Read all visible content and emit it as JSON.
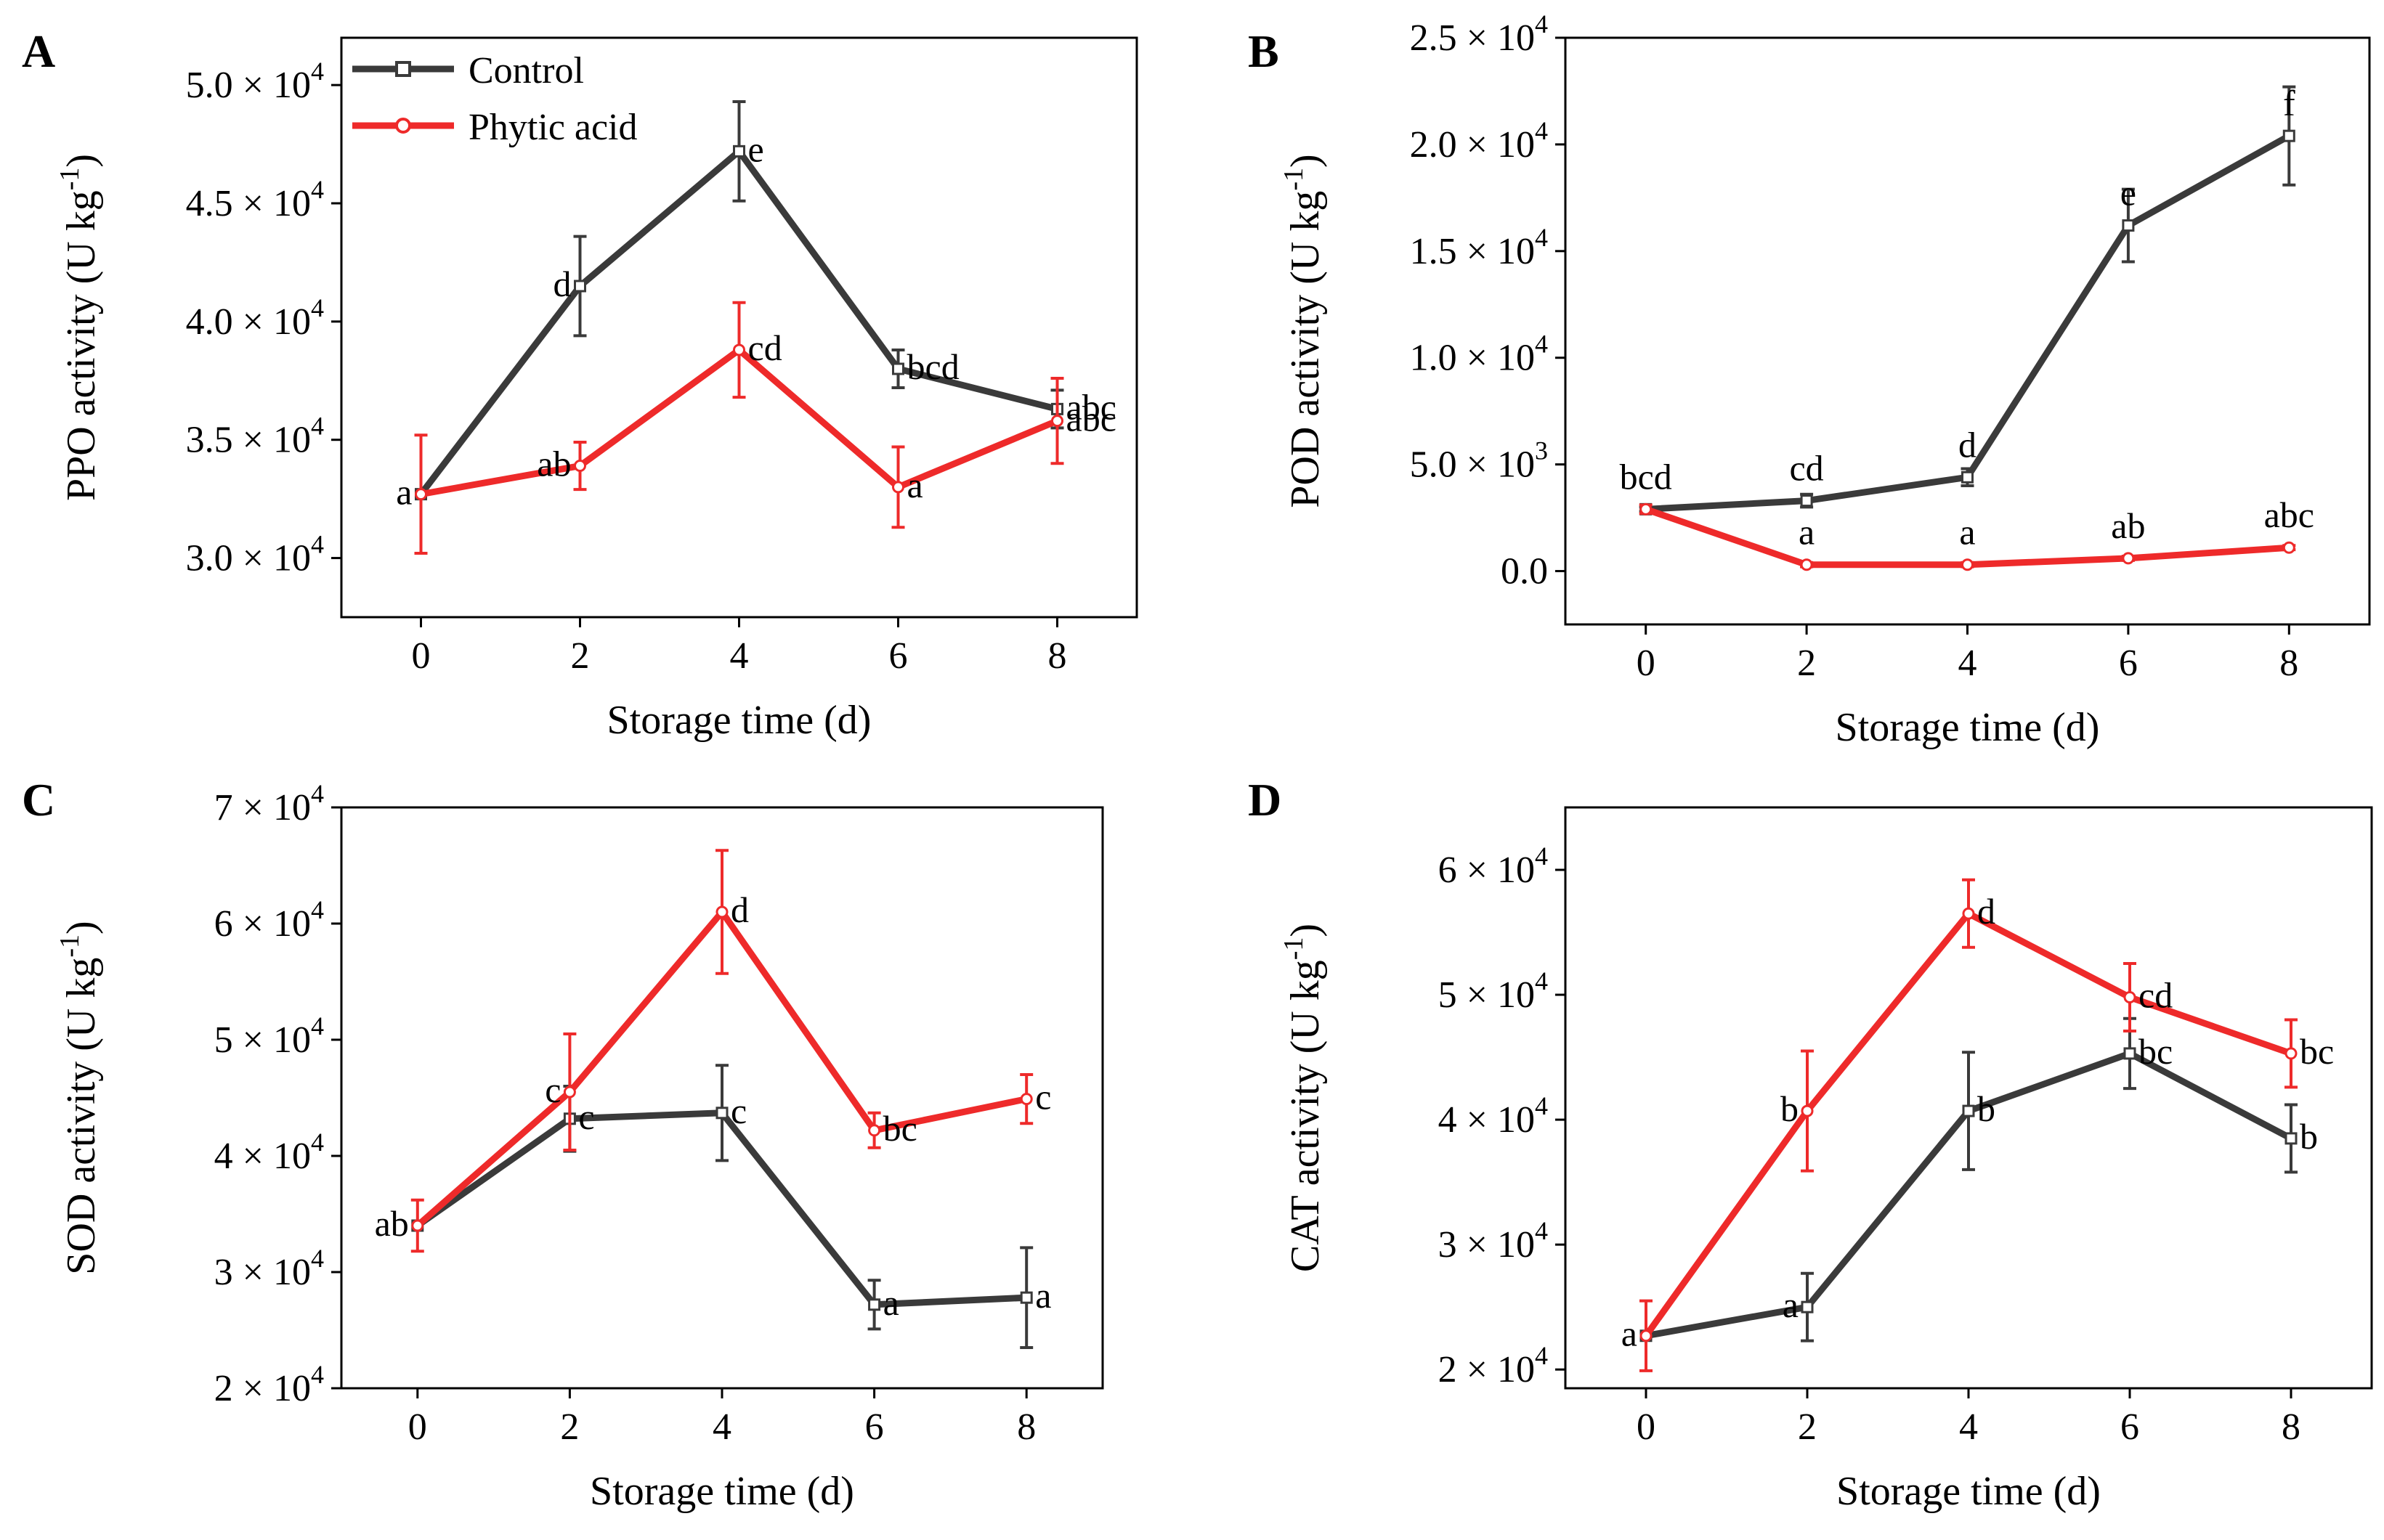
{
  "figure": {
    "xlabel": "Storage time (d)",
    "legend": {
      "control": "Control",
      "phytic": "Phytic acid"
    }
  },
  "colors": {
    "control": "#3a3a3a",
    "phytic": "#ee2a2a",
    "axis": "#000000"
  },
  "chart_data": [
    {
      "type": "line",
      "panel": "A",
      "ylabel": "PPO activity (U kg-1)",
      "xlabel": "Storage time (d)",
      "xlim": [
        -1,
        9
      ],
      "ylim": [
        27500,
        52000
      ],
      "x": [
        0,
        2,
        4,
        6,
        8
      ],
      "xticks": [
        0,
        2,
        4,
        6,
        8
      ],
      "yticks": [
        {
          "mant": "3.0",
          "exp": "4"
        },
        {
          "mant": "3.5",
          "exp": "4"
        },
        {
          "mant": "4.0",
          "exp": "4"
        },
        {
          "mant": "4.5",
          "exp": "4"
        },
        {
          "mant": "5.0",
          "exp": "4"
        }
      ],
      "ytick_values": [
        30000,
        35000,
        40000,
        45000,
        50000
      ],
      "legend_position": "top-left",
      "series": [
        {
          "name": "Control",
          "values": [
            32700,
            41500,
            47200,
            38000,
            36300
          ],
          "errors": [
            0,
            2100,
            2100,
            800,
            800
          ],
          "letters": [
            "",
            "d",
            "e",
            "bcd",
            "abc"
          ]
        },
        {
          "name": "Phytic acid",
          "values": [
            32700,
            33900,
            38800,
            33000,
            35800
          ],
          "errors": [
            2500,
            1000,
            2000,
            1700,
            1800
          ],
          "letters": [
            "a",
            "ab",
            "cd",
            "a",
            "abc"
          ]
        }
      ]
    },
    {
      "type": "line",
      "panel": "B",
      "ylabel": "POD activity (U kg-1)",
      "xlabel": "Storage time (d)",
      "xlim": [
        -1,
        9
      ],
      "ylim": [
        -2500,
        25000
      ],
      "x": [
        0,
        2,
        4,
        6,
        8
      ],
      "xticks": [
        0,
        2,
        4,
        6,
        8
      ],
      "yticks": [
        {
          "mant": "0.0",
          "exp": ""
        },
        {
          "mant": "5.0",
          "exp": "3"
        },
        {
          "mant": "1.0",
          "exp": "4"
        },
        {
          "mant": "1.5",
          "exp": "4"
        },
        {
          "mant": "2.0",
          "exp": "4"
        },
        {
          "mant": "2.5",
          "exp": "4"
        }
      ],
      "ytick_values": [
        0,
        5000,
        10000,
        15000,
        20000,
        25000
      ],
      "series": [
        {
          "name": "Control",
          "values": [
            2900,
            3300,
            4400,
            16200,
            20400
          ],
          "errors": [
            100,
            300,
            400,
            1700,
            2300
          ],
          "letters": [
            "bcd",
            "cd",
            "d",
            "e",
            "f"
          ]
        },
        {
          "name": "Phytic acid",
          "values": [
            2900,
            300,
            300,
            600,
            1100
          ],
          "errors": [
            200,
            100,
            100,
            100,
            100
          ],
          "letters": [
            "",
            "a",
            "a",
            "ab",
            "abc"
          ]
        }
      ]
    },
    {
      "type": "line",
      "panel": "C",
      "ylabel": "SOD activity (U kg-1)",
      "xlabel": "Storage time (d)",
      "xlim": [
        -1,
        9
      ],
      "ylim": [
        20000,
        70000
      ],
      "x": [
        0,
        2,
        4,
        6,
        8
      ],
      "xticks": [
        0,
        2,
        4,
        6,
        8
      ],
      "yticks": [
        {
          "mant": "2",
          "exp": "4"
        },
        {
          "mant": "3",
          "exp": "4"
        },
        {
          "mant": "4",
          "exp": "4"
        },
        {
          "mant": "5",
          "exp": "4"
        },
        {
          "mant": "6",
          "exp": "4"
        },
        {
          "mant": "7",
          "exp": "4"
        }
      ],
      "ytick_values": [
        20000,
        30000,
        40000,
        50000,
        60000,
        70000
      ],
      "series": [
        {
          "name": "Control",
          "values": [
            34000,
            43200,
            43700,
            27200,
            27800
          ],
          "errors": [
            0,
            2800,
            4100,
            2100,
            4300
          ],
          "letters": [
            "",
            "c",
            "c",
            "a",
            "a"
          ]
        },
        {
          "name": "Phytic acid",
          "values": [
            34000,
            45500,
            61000,
            42200,
            44900
          ],
          "errors": [
            2200,
            5000,
            5300,
            1500,
            2100
          ],
          "letters": [
            "ab",
            "c",
            "d",
            "bc",
            "c"
          ]
        }
      ]
    },
    {
      "type": "line",
      "panel": "D",
      "ylabel": "CAT activity (U kg-1)",
      "xlabel": "Storage time (d)",
      "xlim": [
        -1,
        9
      ],
      "ylim": [
        18500,
        65000
      ],
      "x": [
        0,
        2,
        4,
        6,
        8
      ],
      "xticks": [
        0,
        2,
        4,
        6,
        8
      ],
      "yticks": [
        {
          "mant": "2",
          "exp": "4"
        },
        {
          "mant": "3",
          "exp": "4"
        },
        {
          "mant": "4",
          "exp": "4"
        },
        {
          "mant": "5",
          "exp": "4"
        },
        {
          "mant": "6",
          "exp": "4"
        }
      ],
      "ytick_values": [
        20000,
        30000,
        40000,
        50000,
        60000
      ],
      "series": [
        {
          "name": "Control",
          "values": [
            22700,
            25000,
            40700,
            45300,
            38500
          ],
          "errors": [
            0,
            2700,
            4700,
            2800,
            2700
          ],
          "letters": [
            "",
            "a",
            "b",
            "bc",
            "b"
          ]
        },
        {
          "name": "Phytic acid",
          "values": [
            22700,
            40700,
            56500,
            49800,
            45300
          ],
          "errors": [
            2800,
            4800,
            2700,
            2700,
            2700
          ],
          "letters": [
            "a",
            "b",
            "d",
            "cd",
            "bc"
          ]
        }
      ]
    }
  ]
}
